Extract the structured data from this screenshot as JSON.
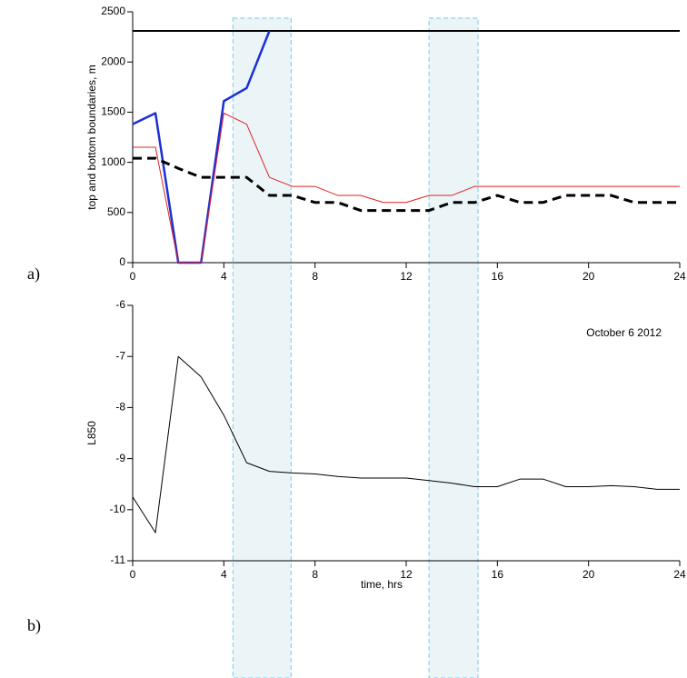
{
  "chart_data": [
    {
      "type": "line",
      "panel_label": "a)",
      "y_label": "top and bottom boundaries, m",
      "xlim": [
        0,
        24
      ],
      "xticks": [
        0,
        4,
        8,
        12,
        16,
        20,
        24
      ],
      "ylim": [
        0,
        2500
      ],
      "yticks": [
        0,
        500,
        1000,
        1500,
        2000,
        2500
      ],
      "shaded_intervals": [
        [
          4.4,
          6.95
        ],
        [
          13,
          15.15
        ]
      ],
      "series": [
        {
          "color": "#000000",
          "width": 2,
          "dash": false,
          "x": [
            0,
            24
          ],
          "values": [
            2310,
            2310
          ]
        },
        {
          "color": "#1a2fd6",
          "width": 2.5,
          "dash": false,
          "x": [
            0,
            1,
            2,
            3,
            4,
            5,
            6
          ],
          "values": [
            1380,
            1490,
            0,
            0,
            1610,
            1740,
            2310
          ]
        },
        {
          "color": "#e02020",
          "width": 1,
          "dash": false,
          "x": [
            0,
            1,
            2,
            3,
            4,
            5,
            6,
            7,
            8,
            9,
            10,
            11,
            12,
            13,
            14,
            15,
            16,
            17,
            18,
            19,
            20,
            21,
            22,
            23,
            24
          ],
          "values": [
            1150,
            1150,
            0,
            0,
            1490,
            1380,
            850,
            760,
            760,
            670,
            670,
            600,
            600,
            670,
            670,
            760,
            760,
            760,
            760,
            760,
            760,
            760,
            760,
            760,
            760
          ]
        },
        {
          "color": "#000000",
          "width": 3,
          "dash": true,
          "x": [
            0,
            1,
            2,
            3,
            4,
            5,
            6,
            7,
            8,
            9,
            10,
            11,
            12,
            13,
            14,
            15,
            16,
            17,
            18,
            19,
            20,
            21,
            22,
            23,
            24
          ],
          "values": [
            1040,
            1040,
            940,
            850,
            850,
            850,
            670,
            670,
            600,
            600,
            520,
            520,
            520,
            520,
            600,
            600,
            670,
            600,
            600,
            670,
            670,
            670,
            600,
            600,
            600
          ]
        }
      ]
    },
    {
      "type": "line",
      "panel_label": "b)",
      "y_label": "L850",
      "x_label": "time, hrs",
      "annotation": "October 6 2012",
      "xlim": [
        0,
        24
      ],
      "xticks": [
        0,
        4,
        8,
        12,
        16,
        20,
        24
      ],
      "ylim": [
        -11,
        -6
      ],
      "yticks": [
        -11,
        -10,
        -9,
        -8,
        -7,
        -6
      ],
      "series": [
        {
          "color": "#000000",
          "width": 1,
          "dash": false,
          "x": [
            0,
            1,
            2,
            3,
            4,
            5,
            6,
            7,
            8,
            9,
            10,
            11,
            12,
            13,
            14,
            15,
            16,
            17,
            18,
            19,
            20,
            21,
            22,
            23,
            24
          ],
          "values": [
            -9.75,
            -10.45,
            -7.0,
            -7.4,
            -8.15,
            -9.08,
            -9.25,
            -9.28,
            -9.3,
            -9.35,
            -9.38,
            -9.38,
            -9.38,
            -9.43,
            -9.48,
            -9.55,
            -9.55,
            -9.4,
            -9.4,
            -9.55,
            -9.55,
            -9.53,
            -9.55,
            -9.6,
            -9.6
          ]
        }
      ]
    }
  ]
}
